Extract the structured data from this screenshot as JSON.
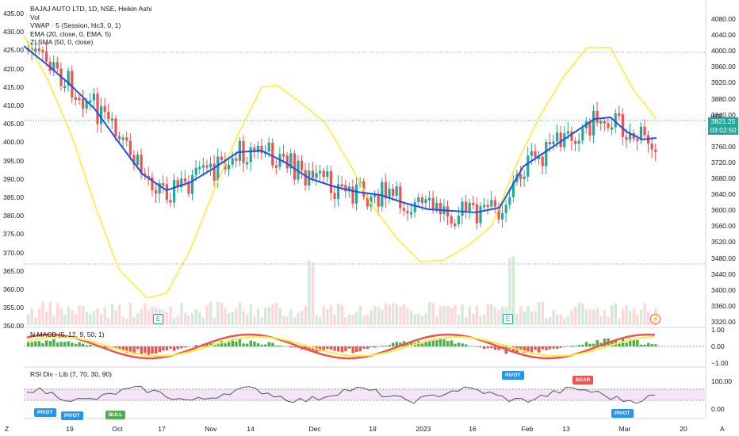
{
  "chart": {
    "symbol_line": "BAJAJ AUTO LTD, 1D, NSE, Heikin Ashi",
    "indicators": [
      "Vol",
      "VWAP · 5 (Session, hlc3, 0, 1)",
      "EMA (20, close, 0, EMA, 5)",
      "ZLSMA (50, 0, close)"
    ],
    "currency": "INR",
    "last_price": "3821.25",
    "countdown": "03:02:50",
    "colors": {
      "up": "#26a69a",
      "down": "#ef5350",
      "ema": "#1e53e5",
      "zlsma": "#ffeb3b",
      "macd_line": "#ef5350",
      "macd_signal": "#ffeb3b",
      "rsi": "#555555"
    }
  },
  "macd_pane": {
    "title": "N MACD (5, 12, 9, 50, 1)"
  },
  "rsi_pane": {
    "title": "RSI Div - Lib (7, 70, 30, 90)"
  },
  "markers": {
    "pivot": "PIVOT",
    "bull": "BULL",
    "bear": "BEAR",
    "earnings": "E"
  },
  "left_axis_ticks": [
    "435.00",
    "430.00",
    "425.00",
    "420.00",
    "415.00",
    "410.00",
    "405.00",
    "400.00",
    "395.00",
    "390.00",
    "385.00",
    "380.00",
    "375.00",
    "370.00",
    "365.00",
    "360.00",
    "355.00",
    "350.00"
  ],
  "right_axis_ticks": [
    "4080.00",
    "4040.00",
    "4000.00",
    "3960.00",
    "3920.00",
    "3880.00",
    "3840.00",
    "3800.00",
    "3760.00",
    "3720.00",
    "3680.00",
    "3640.00",
    "3600.00",
    "3560.00",
    "3520.00",
    "3480.00",
    "3440.00",
    "3400.00",
    "3360.00",
    "3320.00"
  ],
  "macd_ticks": [
    "1.00",
    "0.00",
    "−1.00"
  ],
  "rsi_ticks": [
    "100.00",
    "0.00"
  ],
  "x_ticks": [
    "19",
    "Oct",
    "17",
    "Nov",
    "14",
    "Dec",
    "19",
    "2023",
    "16",
    "Feb",
    "13",
    "Mar",
    "20"
  ],
  "bottom_left": "Z",
  "bottom_right": "A",
  "chart_data": {
    "type": "candlestick",
    "right_axis_range": [
      3300,
      4100
    ],
    "ema_points": [
      [
        30,
        58
      ],
      [
        60,
        82
      ],
      [
        90,
        108
      ],
      [
        120,
        138
      ],
      [
        150,
        180
      ],
      [
        180,
        220
      ],
      [
        210,
        240
      ],
      [
        240,
        230
      ],
      [
        270,
        212
      ],
      [
        300,
        192
      ],
      [
        330,
        190
      ],
      [
        360,
        205
      ],
      [
        390,
        225
      ],
      [
        420,
        235
      ],
      [
        450,
        242
      ],
      [
        480,
        246
      ],
      [
        510,
        256
      ],
      [
        540,
        264
      ],
      [
        570,
        266
      ],
      [
        600,
        268
      ],
      [
        630,
        262
      ],
      [
        660,
        210
      ],
      [
        690,
        190
      ],
      [
        720,
        170
      ],
      [
        750,
        150
      ],
      [
        770,
        148
      ],
      [
        790,
        166
      ],
      [
        810,
        176
      ],
      [
        828,
        174
      ]
    ],
    "zlsma_points": [
      [
        30,
        45
      ],
      [
        60,
        100
      ],
      [
        90,
        170
      ],
      [
        120,
        260
      ],
      [
        150,
        340
      ],
      [
        185,
        376
      ],
      [
        210,
        370
      ],
      [
        240,
        315
      ],
      [
        270,
        240
      ],
      [
        300,
        170
      ],
      [
        330,
        110
      ],
      [
        350,
        108
      ],
      [
        380,
        130
      ],
      [
        410,
        155
      ],
      [
        440,
        205
      ],
      [
        470,
        260
      ],
      [
        500,
        300
      ],
      [
        530,
        330
      ],
      [
        560,
        328
      ],
      [
        590,
        310
      ],
      [
        620,
        285
      ],
      [
        650,
        210
      ],
      [
        680,
        148
      ],
      [
        710,
        98
      ],
      [
        740,
        60
      ],
      [
        770,
        60
      ],
      [
        800,
        115
      ],
      [
        828,
        150
      ]
    ]
  }
}
